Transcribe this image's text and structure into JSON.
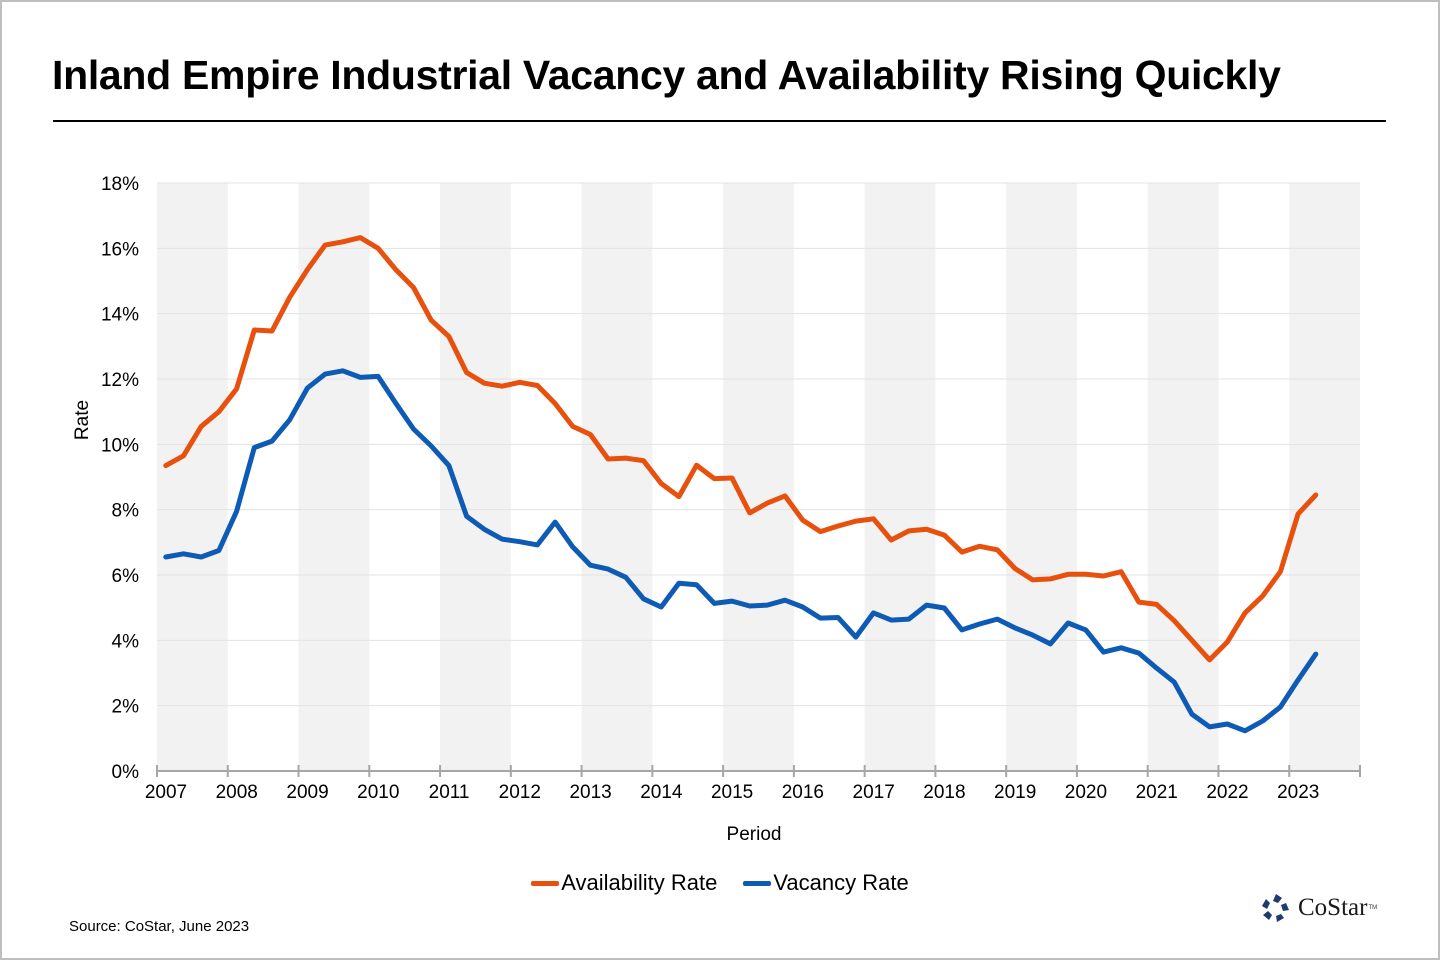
{
  "title": "Inland Empire Industrial Vacancy and Availability Rising Quickly",
  "source": "Source: CoStar, June 2023",
  "logo": {
    "text": "CoStar",
    "tm": "TM",
    "icon": "costar-logo-icon"
  },
  "colors": {
    "availability": "#E8500E",
    "vacancy": "#0E5BB5",
    "band": "#F2F2F2",
    "grid": "#E3E3E3",
    "axis": "#A6A6A6"
  },
  "chart_data": {
    "type": "line",
    "title": "Inland Empire Industrial Vacancy and Availability Rising Quickly",
    "xlabel": "Period",
    "ylabel": "Rate",
    "ylim": [
      0,
      18
    ],
    "yticks": [
      "0%",
      "2%",
      "4%",
      "6%",
      "8%",
      "10%",
      "12%",
      "14%",
      "16%",
      "18%"
    ],
    "ytick_values": [
      0,
      2,
      4,
      6,
      8,
      10,
      12,
      14,
      16,
      18
    ],
    "xticks": [
      "2007",
      "2008",
      "2009",
      "2010",
      "2011",
      "2012",
      "2013",
      "2014",
      "2015",
      "2016",
      "2017",
      "2018",
      "2019",
      "2020",
      "2021",
      "2022",
      "2023"
    ],
    "x_frequency": "quarterly",
    "x_start": "2007 Q1",
    "x_end": "2023 Q2",
    "grid": true,
    "alternating_year_bands": true,
    "legend_position": "bottom",
    "series": [
      {
        "name": "Availability Rate",
        "color": "#E8500E",
        "values": [
          9.35,
          9.65,
          10.55,
          11.0,
          11.7,
          13.5,
          13.47,
          14.5,
          15.35,
          16.1,
          16.2,
          16.33,
          16.0,
          15.35,
          14.8,
          13.8,
          13.3,
          12.2,
          11.87,
          11.78,
          11.9,
          11.8,
          11.25,
          10.55,
          10.3,
          9.55,
          9.58,
          9.5,
          8.8,
          8.4,
          9.36,
          8.95,
          8.97,
          7.9,
          8.2,
          8.42,
          7.68,
          7.33,
          7.5,
          7.65,
          7.72,
          7.07,
          7.35,
          7.4,
          7.22,
          6.7,
          6.88,
          6.77,
          6.2,
          5.85,
          5.88,
          6.02,
          6.02,
          5.97,
          6.1,
          5.17,
          5.1,
          4.6,
          4.0,
          3.4,
          3.95,
          4.84,
          5.36,
          6.1,
          7.87,
          8.45
        ]
      },
      {
        "name": "Vacancy Rate",
        "color": "#0E5BB5",
        "values": [
          6.55,
          6.65,
          6.55,
          6.75,
          7.95,
          9.9,
          10.1,
          10.75,
          11.72,
          12.15,
          12.25,
          12.05,
          12.08,
          11.26,
          10.47,
          9.95,
          9.35,
          7.8,
          7.4,
          7.1,
          7.02,
          6.92,
          7.62,
          6.86,
          6.3,
          6.18,
          5.93,
          5.27,
          5.02,
          5.75,
          5.7,
          5.13,
          5.2,
          5.05,
          5.08,
          5.23,
          5.02,
          4.68,
          4.7,
          4.1,
          4.84,
          4.62,
          4.65,
          5.08,
          4.99,
          4.32,
          4.5,
          4.65,
          4.38,
          4.16,
          3.89,
          4.53,
          4.32,
          3.64,
          3.77,
          3.61,
          3.15,
          2.72,
          1.74,
          1.35,
          1.44,
          1.23,
          1.53,
          1.96,
          2.79,
          3.58
        ]
      }
    ]
  }
}
